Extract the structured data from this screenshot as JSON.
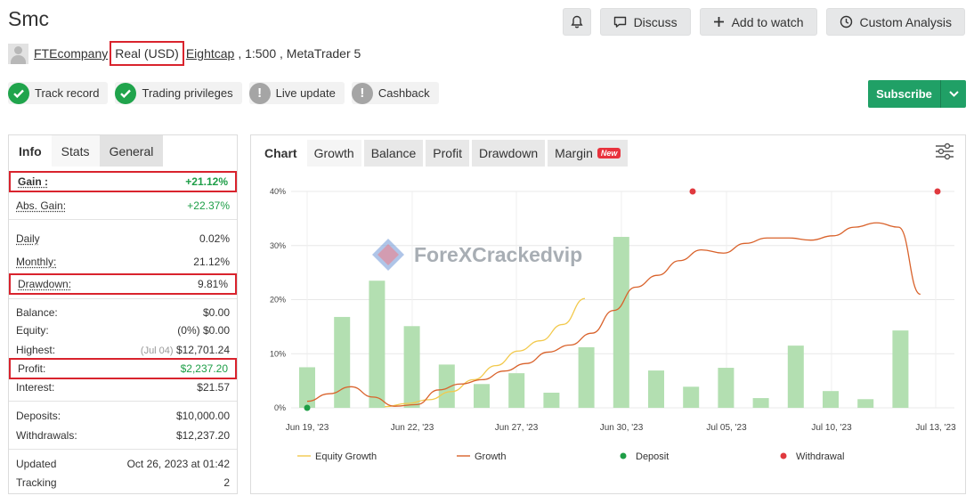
{
  "header": {
    "title": "Smc",
    "actions": {
      "discuss": "Discuss",
      "watch": "Add to watch",
      "custom": "Custom Analysis"
    }
  },
  "account": {
    "owner": "FTEcompany",
    "type": "Real (USD)",
    "broker": "Eightcap",
    "details": ", 1:500 , MetaTrader 5"
  },
  "badges": {
    "track": "Track record",
    "trading": "Trading privileges",
    "live": "Live update",
    "cashback": "Cashback"
  },
  "subscribe": {
    "label": "Subscribe"
  },
  "left_tabs": {
    "info": "Info",
    "stats": "Stats",
    "general": "General"
  },
  "stats": {
    "gain": {
      "label": "Gain :",
      "value": "+21.12%"
    },
    "abs_gain": {
      "label": "Abs. Gain:",
      "value": "+22.37%"
    },
    "daily": {
      "label": "Daily",
      "value": "0.02%"
    },
    "monthly": {
      "label": "Monthly:",
      "value": "21.12%"
    },
    "drawdown": {
      "label": "Drawdown:",
      "value": "9.81%"
    },
    "balance": {
      "label": "Balance:",
      "value": "$0.00"
    },
    "equity": {
      "label": "Equity:",
      "pct": "(0%)",
      "value": "$0.00"
    },
    "highest": {
      "label": "Highest:",
      "date": "(Jul 04)",
      "value": "$12,701.24"
    },
    "profit": {
      "label": "Profit:",
      "value": "$2,237.20"
    },
    "interest": {
      "label": "Interest:",
      "value": "$21.57"
    },
    "deposits": {
      "label": "Deposits:",
      "value": "$10,000.00"
    },
    "withdrawals": {
      "label": "Withdrawals:",
      "value": "$12,237.20"
    },
    "updated": {
      "label": "Updated",
      "value": "Oct 26, 2023 at 01:42"
    },
    "tracking": {
      "label": "Tracking",
      "value": "2"
    }
  },
  "chart_tabs": {
    "chart": "Chart",
    "growth": "Growth",
    "balance": "Balance",
    "profit": "Profit",
    "drawdown": "Drawdown",
    "margin": "Margin",
    "new": "New"
  },
  "watermark": "ForeXCrackedvip",
  "chart_data": {
    "type": "bar",
    "ylim": [
      0,
      40
    ],
    "y_ticks": [
      "0%",
      "10%",
      "20%",
      "30%",
      "40%"
    ],
    "x_tick_labels": [
      "Jun 19, '23",
      "Jun 22, '23",
      "Jun 27, '23",
      "Jun 30, '23",
      "Jul 05, '23",
      "Jul 10, '23",
      "Jul 13, '23"
    ],
    "bars": [
      7.5,
      16.8,
      23.5,
      15.1,
      8,
      4.4,
      6.4,
      2.8,
      11.2,
      31.6,
      6.9,
      3.9,
      7.4,
      1.8,
      11.5,
      3.1,
      1.6,
      14.3
    ],
    "growth_line": [
      1.2,
      2.6,
      3.9,
      2.0,
      0.3,
      0.6,
      3.3,
      4.4,
      5.2,
      6.8,
      8.2,
      10.3,
      11.6,
      13.8,
      18.0,
      22.3,
      24.5,
      27.2,
      29.2,
      28.6,
      30.4,
      31.4,
      31.4,
      31.0,
      31.8,
      33.4,
      34.2,
      33.4,
      21.0
    ],
    "equity_growth_line": [
      0.2,
      0.8,
      1.5,
      3.0,
      5.2,
      7.8,
      10.5,
      12.4,
      15.4,
      20.2
    ],
    "deposit_points": [
      0
    ],
    "withdrawal_points": [
      0,
      0
    ],
    "legend": [
      "Equity Growth",
      "Growth",
      "Deposit",
      "Withdrawal"
    ],
    "colors": {
      "bars": "#b3dfb1",
      "growth": "#d9622b",
      "equity": "#f2c94c",
      "deposit": "#1f9e46",
      "withdrawal": "#e0393e"
    }
  }
}
